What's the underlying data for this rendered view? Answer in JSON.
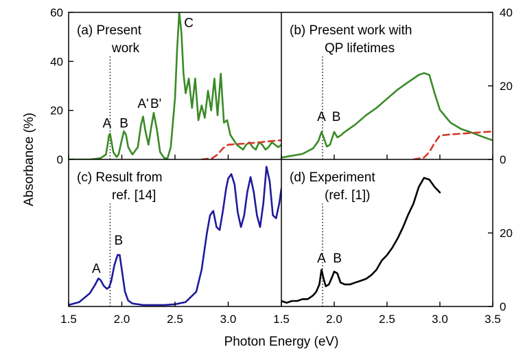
{
  "chart_data": {
    "type": "line",
    "xlabel": "Photon Energy (eV)",
    "ylabel": "Absorbance (%)",
    "marker_line_x": 1.89,
    "panels": [
      {
        "id": "a",
        "label_lines": [
          "(a) Present",
          "work"
        ],
        "xlim": [
          1.5,
          3.5
        ],
        "ylim": [
          0,
          60
        ],
        "left_ticks": [
          "0",
          "20",
          "40",
          "60"
        ],
        "left_tick_values": [
          0,
          20,
          40,
          60
        ],
        "right_ticks": [],
        "right_tick_values": [],
        "series": [
          {
            "color": "#3a8a26",
            "dash": false,
            "x": [
              1.5,
              1.7,
              1.8,
              1.85,
              1.87,
              1.88,
              1.89,
              1.9,
              1.92,
              1.95,
              1.97,
              2.0,
              2.02,
              2.04,
              2.06,
              2.1,
              2.15,
              2.18,
              2.2,
              2.22,
              2.25,
              2.28,
              2.3,
              2.33,
              2.36,
              2.4,
              2.43,
              2.46,
              2.5,
              2.52,
              2.54,
              2.56,
              2.58,
              2.6,
              2.63,
              2.66,
              2.69,
              2.72,
              2.75,
              2.78,
              2.81,
              2.84,
              2.87,
              2.9,
              2.93,
              2.96,
              2.99,
              3.02,
              3.05,
              3.08,
              3.11,
              3.14,
              3.17,
              3.2,
              3.23,
              3.26,
              3.29,
              3.32,
              3.35,
              3.38,
              3.41,
              3.44,
              3.47,
              3.5
            ],
            "y": [
              0,
              0,
              0.5,
              2,
              7,
              10,
              10.5,
              8,
              3,
              1,
              2,
              8,
              11.5,
              10,
              5,
              2,
              5,
              14,
              17.5,
              12,
              6,
              14,
              19,
              12,
              3,
              0.5,
              0.5,
              5,
              25,
              45,
              60,
              52,
              35,
              27,
              33,
              21,
              33,
              16,
              22,
              17,
              28,
              20,
              33,
              18,
              35,
              15,
              16,
              10,
              8,
              6,
              5,
              4,
              6,
              7,
              5,
              4,
              7,
              6,
              4,
              5,
              7,
              6,
              5,
              6
            ]
          },
          {
            "color": "#d7372a",
            "dash": true,
            "x": [
              2.75,
              2.85,
              2.9,
              2.95,
              3.0,
              3.1,
              3.2,
              3.3,
              3.4,
              3.5
            ],
            "y": [
              0,
              0.5,
              2,
              4.5,
              6,
              6.3,
              6.6,
              7,
              7.5,
              7.8
            ]
          }
        ],
        "annotations": [
          {
            "text": "A",
            "x": 1.86,
            "y": 13
          },
          {
            "text": "B",
            "x": 2.02,
            "y": 13
          },
          {
            "text": "A'",
            "x": 2.2,
            "y": 21
          },
          {
            "text": "B'",
            "x": 2.32,
            "y": 21
          },
          {
            "text": "C",
            "x": 2.63,
            "y": 54
          }
        ]
      },
      {
        "id": "b",
        "label_lines": [
          "(b) Present work with",
          "QP lifetimes"
        ],
        "xlim": [
          1.5,
          3.5
        ],
        "ylim": [
          0,
          40
        ],
        "left_ticks": [],
        "left_tick_values": [],
        "right_ticks": [
          "0",
          "20",
          "40"
        ],
        "right_tick_values": [
          0,
          20,
          40
        ],
        "series": [
          {
            "color": "#3a8a26",
            "dash": false,
            "x": [
              1.5,
              1.6,
              1.7,
              1.8,
              1.85,
              1.88,
              1.9,
              1.93,
              1.96,
              2.0,
              2.03,
              2.06,
              2.1,
              2.2,
              2.3,
              2.4,
              2.5,
              2.6,
              2.7,
              2.8,
              2.85,
              2.9,
              2.95,
              3.0,
              3.1,
              3.2,
              3.3,
              3.4,
              3.5
            ],
            "y": [
              0.5,
              1,
              1.5,
              3,
              5,
              7.5,
              6,
              3.5,
              4,
              7.5,
              6,
              6.5,
              7.5,
              9.5,
              12,
              14,
              16.5,
              19,
              21,
              23,
              23.5,
              23,
              18,
              13.5,
              10,
              8.3,
              7.3,
              6.2,
              5.2
            ]
          },
          {
            "color": "#d7372a",
            "dash": true,
            "x": [
              2.75,
              2.85,
              2.9,
              2.95,
              3.0,
              3.1,
              3.2,
              3.3,
              3.4,
              3.5
            ],
            "y": [
              0,
              0.5,
              2,
              4.5,
              6.5,
              6.8,
              7,
              7.2,
              7.4,
              7.6
            ]
          }
        ],
        "annotations": [
          {
            "text": "A",
            "x": 1.88,
            "y": 10.5
          },
          {
            "text": "B",
            "x": 2.02,
            "y": 10.5
          }
        ]
      },
      {
        "id": "c",
        "label_lines": [
          "(c) Result from",
          "ref. [14]"
        ],
        "xlim": [
          1.5,
          3.5
        ],
        "ylim": [
          0,
          100
        ],
        "left_ticks": [],
        "left_tick_values": [],
        "right_ticks": [],
        "right_tick_values": [],
        "series": [
          {
            "color": "#1d1a9c",
            "dash": false,
            "x": [
              1.5,
              1.6,
              1.7,
              1.75,
              1.78,
              1.8,
              1.83,
              1.86,
              1.88,
              1.9,
              1.93,
              1.96,
              1.98,
              2.0,
              2.03,
              2.06,
              2.1,
              2.2,
              2.3,
              2.4,
              2.5,
              2.6,
              2.7,
              2.75,
              2.8,
              2.83,
              2.86,
              2.89,
              2.92,
              2.95,
              2.98,
              3.0,
              3.03,
              3.06,
              3.09,
              3.12,
              3.15,
              3.18,
              3.21,
              3.24,
              3.27,
              3.3,
              3.33,
              3.36,
              3.39,
              3.42,
              3.45,
              3.48,
              3.5
            ],
            "y": [
              1,
              3,
              9,
              15,
              19,
              18,
              14,
              12,
              13,
              17,
              28,
              35,
              35,
              25,
              10,
              4,
              2,
              1,
              1,
              1,
              1.5,
              3,
              10,
              25,
              50,
              62,
              65,
              54,
              52,
              65,
              80,
              87,
              90,
              83,
              64,
              54,
              62,
              78,
              88,
              78,
              62,
              54,
              70,
              95,
              85,
              62,
              60,
              70,
              80
            ]
          }
        ],
        "annotations": [
          {
            "text": "A",
            "x": 1.76,
            "y": 23
          },
          {
            "text": "B",
            "x": 1.97,
            "y": 42
          }
        ]
      },
      {
        "id": "d",
        "label_lines": [
          "(d) Experiment",
          "(ref. [1])"
        ],
        "xlim": [
          1.5,
          3.5
        ],
        "ylim": [
          0,
          40
        ],
        "left_ticks": [],
        "left_tick_values": [],
        "right_ticks": [
          "0",
          "20"
        ],
        "right_tick_values": [
          0,
          20
        ],
        "series": [
          {
            "color": "#000000",
            "dash": false,
            "x": [
              1.5,
              1.55,
              1.6,
              1.65,
              1.7,
              1.75,
              1.8,
              1.83,
              1.86,
              1.88,
              1.9,
              1.92,
              1.95,
              1.98,
              2.0,
              2.03,
              2.06,
              2.1,
              2.15,
              2.2,
              2.25,
              2.3,
              2.35,
              2.4,
              2.45,
              2.5,
              2.55,
              2.6,
              2.65,
              2.7,
              2.75,
              2.8,
              2.85,
              2.9,
              2.95,
              3.0
            ],
            "y": [
              1.5,
              1,
              1.5,
              1.5,
              2,
              2,
              3,
              4,
              6,
              10,
              7.5,
              5.5,
              6,
              8,
              9.5,
              9,
              6.5,
              6,
              6,
              6.5,
              7,
              7.5,
              8.5,
              10,
              12.5,
              14,
              16,
              18.5,
              21.5,
              25,
              28,
              32.5,
              35,
              34.5,
              32.5,
              31
            ]
          }
        ],
        "annotations": [
          {
            "text": "A",
            "x": 1.88,
            "y": 12
          },
          {
            "text": "B",
            "x": 2.03,
            "y": 12
          }
        ]
      }
    ],
    "bottom_ticks_left": [
      "1.5",
      "2.0",
      "2.5",
      "3.0"
    ],
    "bottom_tick_values_left": [
      1.5,
      2.0,
      2.5,
      3.0
    ],
    "bottom_ticks_right": [
      "1.5",
      "2.0",
      "2.5",
      "3.0",
      "3.5"
    ],
    "bottom_tick_values_right": [
      1.5,
      2.0,
      2.5,
      3.0,
      3.5
    ]
  }
}
